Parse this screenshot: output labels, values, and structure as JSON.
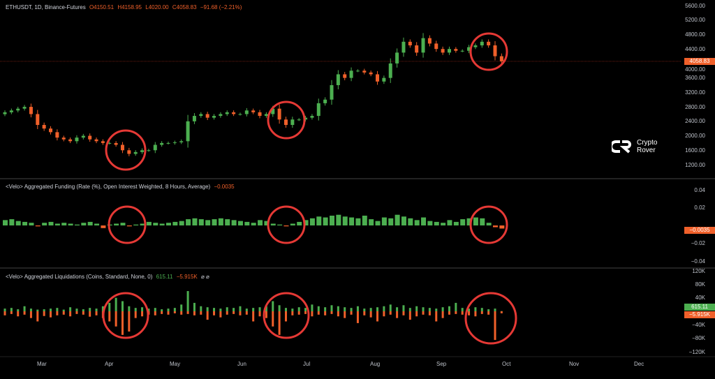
{
  "header": {
    "symbol": "ETHUSDT, 1D, Binance-Futures",
    "o": "O4150.51",
    "h": "H4158.95",
    "l": "L4020.00",
    "c": "C4058.83",
    "chg": "−91.68 (−2.21%)"
  },
  "funding_legend": {
    "title": "<Velo> Aggregated Funding (Rate (%), Open Interest Weighted, 8 Hours, Average)",
    "value": "−0.0035"
  },
  "liq_legend": {
    "title": "<Velo> Aggregated Liquidations (Coins, Standard, None, 0)",
    "v1": "615.11",
    "v2": "−5.915K",
    "icons": "⌀ ⌀"
  },
  "logo": {
    "line1": "Crypto",
    "line2": "Rover"
  },
  "colors": {
    "up": "#4caf50",
    "down": "#f0602a",
    "highlight": "#e53935"
  },
  "chart_data": [
    {
      "type": "candlestick",
      "symbol": "ETHUSDT",
      "interval": "1D",
      "ylim": [
        1200,
        5600
      ],
      "yticks": [
        "5600.00",
        "5200.00",
        "4800.00",
        "4400.00",
        "4000.00",
        "3600.00",
        "3200.00",
        "2800.00",
        "2400.00",
        "2000.00",
        "1600.00",
        "1200.00"
      ],
      "last_price": "4058.83",
      "closes": [
        2650,
        2700,
        2750,
        2800,
        2600,
        2300,
        2200,
        2100,
        1950,
        1900,
        1850,
        1950,
        2000,
        1900,
        1850,
        1800,
        1800,
        1750,
        1600,
        1500,
        1550,
        1600,
        1600,
        1750,
        1800,
        1800,
        1820,
        1850,
        2400,
        2550,
        2600,
        2500,
        2550,
        2600,
        2650,
        2600,
        2600,
        2700,
        2650,
        2550,
        2600,
        2750,
        2450,
        2300,
        2450,
        2450,
        2500,
        2550,
        2900,
        3000,
        3400,
        3700,
        3600,
        3800,
        3800,
        3750,
        3700,
        3500,
        3600,
        4000,
        4300,
        4600,
        4500,
        4300,
        4700,
        4550,
        4400,
        4300,
        4400,
        4350,
        4350,
        4450,
        4500,
        4600,
        4500,
        4200,
        4058.83
      ]
    },
    {
      "type": "bar",
      "name": "<Velo> Aggregated Funding",
      "ylim": [
        -0.04,
        0.04
      ],
      "yticks": [
        "0.04",
        "0.02",
        "−0.02",
        "−0.04"
      ],
      "last_value": "−0.0035",
      "values": [
        0.006,
        0.007,
        0.005,
        0.004,
        0.003,
        -0.001,
        0.003,
        0.004,
        0.002,
        0.003,
        0.002,
        0.001,
        0.003,
        0.004,
        0.002,
        -0.003,
        0.001,
        0.002,
        0.003,
        -0.001,
        0.001,
        0.002,
        0.004,
        0.003,
        0.002,
        0.003,
        0.004,
        0.005,
        0.007,
        0.008,
        0.007,
        0.006,
        0.007,
        0.008,
        0.007,
        0.006,
        0.005,
        0.004,
        0.003,
        0.006,
        0.005,
        0.002,
        0.001,
        -0.001,
        0.002,
        0.004,
        0.006,
        0.008,
        0.01,
        0.009,
        0.011,
        0.012,
        0.01,
        0.009,
        0.008,
        0.011,
        0.007,
        0.005,
        0.009,
        0.008,
        0.012,
        0.01,
        0.008,
        0.006,
        0.009,
        0.005,
        0.004,
        0.003,
        0.006,
        0.004,
        0.007,
        0.008,
        0.009,
        0.008,
        0.003,
        -0.002,
        -0.0035
      ]
    },
    {
      "type": "bar",
      "name": "<Velo> Aggregated Liquidations",
      "ylim": [
        -120000,
        120000
      ],
      "yticks": [
        "120K",
        "80K",
        "40K",
        "−40K",
        "−80K",
        "−120K"
      ],
      "last_values": [
        "615.11",
        "−5.915K"
      ],
      "longs": [
        -12000,
        -8000,
        -15000,
        -10000,
        -20000,
        -30000,
        -14000,
        -18000,
        -12000,
        -10000,
        -15000,
        -8000,
        -10000,
        -16000,
        -12000,
        -20000,
        -30000,
        -45000,
        -70000,
        -60000,
        -20000,
        -15000,
        -10000,
        -12000,
        -8000,
        -10000,
        -6000,
        -10000,
        -8000,
        -12000,
        -10000,
        -25000,
        -12000,
        -18000,
        -10000,
        -8000,
        -12000,
        -10000,
        -30000,
        -15000,
        -20000,
        -45000,
        -70000,
        -30000,
        -12000,
        -10000,
        -8000,
        -15000,
        -10000,
        -12000,
        -8000,
        -15000,
        -20000,
        -10000,
        -35000,
        -12000,
        -18000,
        -30000,
        -15000,
        -10000,
        -20000,
        -12000,
        -25000,
        -15000,
        -10000,
        -12000,
        -30000,
        -20000,
        -10000,
        -8000,
        -10000,
        -12000,
        -15000,
        -8000,
        -10000,
        -85000,
        -5915
      ],
      "shorts": [
        8000,
        10000,
        6000,
        15000,
        8000,
        5000,
        6000,
        8000,
        10000,
        5000,
        12000,
        8000,
        6000,
        10000,
        8000,
        15000,
        25000,
        40000,
        30000,
        15000,
        10000,
        12000,
        8000,
        10000,
        6000,
        8000,
        10000,
        20000,
        60000,
        25000,
        15000,
        12000,
        10000,
        8000,
        12000,
        10000,
        15000,
        8000,
        10000,
        12000,
        15000,
        30000,
        18000,
        10000,
        8000,
        12000,
        10000,
        20000,
        15000,
        12000,
        18000,
        15000,
        12000,
        10000,
        15000,
        8000,
        10000,
        12000,
        15000,
        20000,
        12000,
        18000,
        10000,
        15000,
        12000,
        10000,
        8000,
        12000,
        15000,
        25000,
        10000,
        8000,
        12000,
        10000,
        6000,
        8000,
        615.11
      ]
    },
    {
      "type": "x-axis",
      "ticks": [
        "Mar",
        "Apr",
        "May",
        "Jun",
        "Jul",
        "Aug",
        "Sep",
        "Oct",
        "Nov",
        "Dec"
      ]
    }
  ]
}
